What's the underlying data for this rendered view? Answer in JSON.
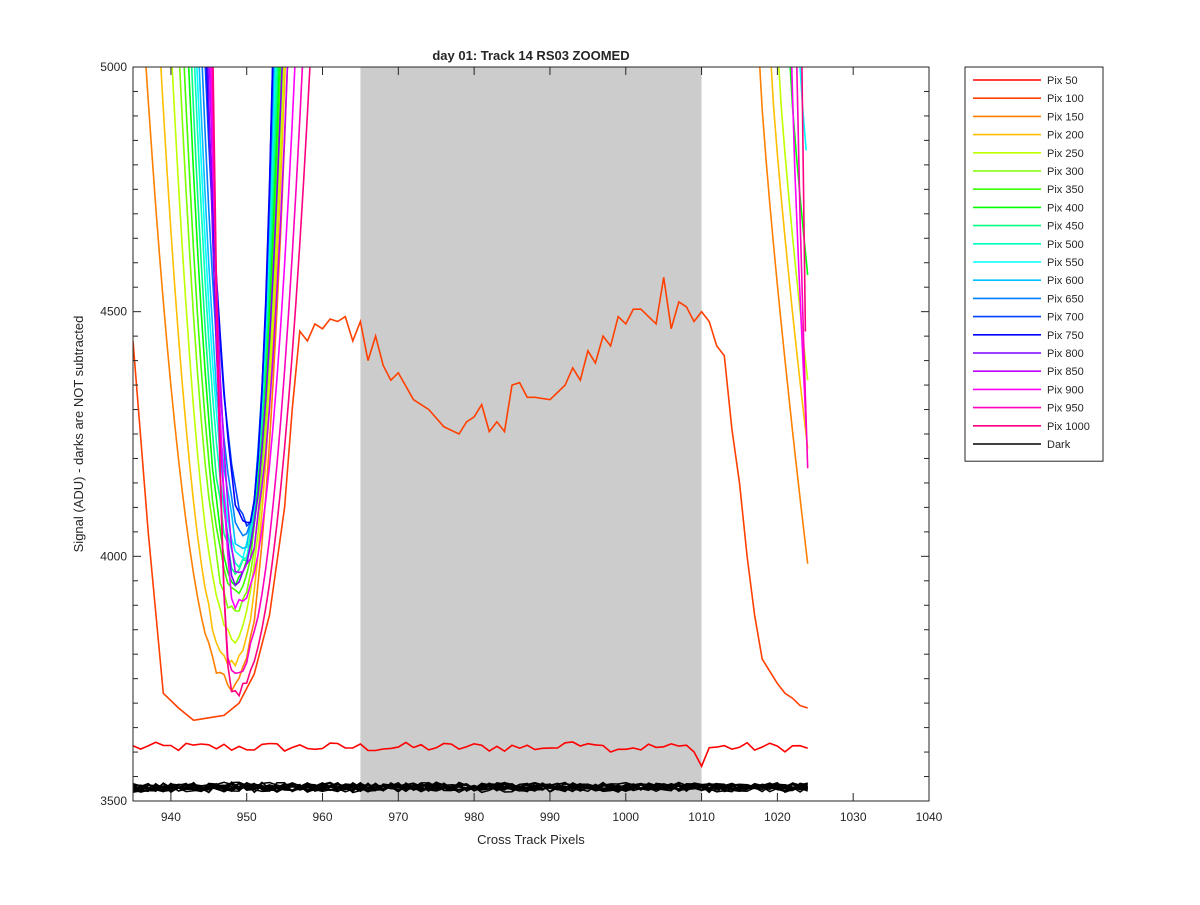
{
  "chart_data": {
    "type": "line",
    "title": "day 01: Track 14  RS03 ZOOMED",
    "xlabel": "Cross Track Pixels",
    "ylabel": "Signal (ADU) - darks are NOT subtracted",
    "xlim": [
      935,
      1040
    ],
    "ylim": [
      3500,
      5000
    ],
    "xticks": [
      940,
      950,
      960,
      970,
      980,
      990,
      1000,
      1010,
      1020,
      1030,
      1040
    ],
    "yticks": [
      3500,
      4000,
      4500,
      5000
    ],
    "grid": false,
    "legend_position": "outside-top-right",
    "shaded_region": {
      "x": [
        965,
        1010
      ],
      "color": "#cccccc"
    },
    "series": [
      {
        "name": "Pix 50",
        "color": "#ff0000",
        "kind": "flat",
        "base": 3610,
        "noise": 10
      },
      {
        "name": "Pix 100",
        "color": "#ff4000",
        "kind": "pix100",
        "x": [
          935,
          937,
          939,
          941,
          943,
          945,
          947,
          949,
          951,
          953,
          955,
          956,
          957,
          958,
          959,
          960,
          961,
          962,
          963,
          964,
          965,
          966,
          967,
          968,
          969,
          970,
          972,
          974,
          976,
          978,
          979,
          980,
          981,
          982,
          983,
          984,
          985,
          986,
          987,
          988,
          990,
          992,
          993,
          994,
          995,
          996,
          997,
          998,
          999,
          1000,
          1001,
          1002,
          1003,
          1004,
          1005,
          1006,
          1007,
          1008,
          1009,
          1010,
          1011,
          1012,
          1013,
          1014,
          1015,
          1016,
          1017,
          1018,
          1019,
          1020,
          1021,
          1022,
          1023,
          1024
        ],
        "y": [
          4440,
          4050,
          3720,
          3690,
          3665,
          3670,
          3675,
          3700,
          3760,
          3880,
          4100,
          4300,
          4460,
          4440,
          4475,
          4465,
          4485,
          4480,
          4490,
          4440,
          4480,
          4400,
          4450,
          4390,
          4360,
          4375,
          4320,
          4300,
          4265,
          4250,
          4275,
          4285,
          4310,
          4255,
          4275,
          4255,
          4350,
          4355,
          4325,
          4325,
          4320,
          4350,
          4385,
          4360,
          4420,
          4395,
          4450,
          4430,
          4490,
          4475,
          4505,
          4505,
          4490,
          4475,
          4570,
          4465,
          4520,
          4510,
          4480,
          4500,
          4480,
          4430,
          4410,
          4260,
          4150,
          4000,
          3880,
          3790,
          3765,
          3740,
          3720,
          3710,
          3695,
          3690
        ]
      },
      {
        "name": "Pix 150",
        "color": "#ff8000",
        "kind": "u",
        "min": 3735,
        "center": 948,
        "left_x": 936.5,
        "right_x": 955.5,
        "far_x": 1017.5,
        "end_value": 3985
      },
      {
        "name": "Pix 200",
        "color": "#ffbf00",
        "kind": "u",
        "min": 3780,
        "center": 948,
        "left_x": 938.5,
        "right_x": 955.2,
        "far_x": 1019,
        "end_value": 4220
      },
      {
        "name": "Pix 250",
        "color": "#bfff00",
        "kind": "u",
        "min": 3835,
        "center": 948.2,
        "left_x": 940,
        "right_x": 955,
        "far_x": 1020,
        "end_value": 4360
      },
      {
        "name": "Pix 300",
        "color": "#80ff00",
        "kind": "u",
        "min": 3890,
        "center": 948.4,
        "left_x": 941,
        "right_x": 954.8
      },
      {
        "name": "Pix 350",
        "color": "#40ff00",
        "kind": "u",
        "min": 3925,
        "center": 948.5,
        "left_x": 941.6,
        "right_x": 954.6
      },
      {
        "name": "Pix 400",
        "color": "#00ff00",
        "kind": "u",
        "min": 3950,
        "center": 948.6,
        "left_x": 942.2,
        "right_x": 954.4,
        "far_x": 1021.5,
        "end_value": 4575
      },
      {
        "name": "Pix 450",
        "color": "#00ff80",
        "kind": "u",
        "min": 3970,
        "center": 948.8,
        "left_x": 942.6,
        "right_x": 954.2
      },
      {
        "name": "Pix 500",
        "color": "#00ffbf",
        "kind": "u",
        "min": 3985,
        "center": 949,
        "left_x": 943,
        "right_x": 954
      },
      {
        "name": "Pix 550",
        "color": "#00ffff",
        "kind": "u",
        "min": 4000,
        "center": 949.2,
        "left_x": 943.3,
        "right_x": 953.8,
        "far_x": 1022.8,
        "end_value": 4795
      },
      {
        "name": "Pix 600",
        "color": "#00bfff",
        "kind": "u",
        "min": 4020,
        "center": 949.4,
        "left_x": 943.6,
        "right_x": 953.7
      },
      {
        "name": "Pix 650",
        "color": "#0080ff",
        "kind": "u",
        "min": 4040,
        "center": 949.6,
        "left_x": 944,
        "right_x": 953.6
      },
      {
        "name": "Pix 700",
        "color": "#0040ff",
        "kind": "u",
        "min": 4070,
        "center": 950,
        "left_x": 944.4,
        "right_x": 953.5
      },
      {
        "name": "Pix 750",
        "color": "#0000ff",
        "kind": "u",
        "min": 4060,
        "center": 949.8,
        "left_x": 944.6,
        "right_x": 953.5
      },
      {
        "name": "Pix 800",
        "color": "#8000ff",
        "kind": "u",
        "min": 3950,
        "center": 948.5,
        "left_x": 944.8,
        "right_x": 954.8
      },
      {
        "name": "Pix 850",
        "color": "#bf00ff",
        "kind": "u",
        "min": 3965,
        "center": 949,
        "left_x": 945,
        "right_x": 955.5
      },
      {
        "name": "Pix 900",
        "color": "#ff00ff",
        "kind": "u",
        "min": 3895,
        "center": 948.5,
        "left_x": 945.2,
        "right_x": 956.5,
        "far_x": 1021.8,
        "end_value": 4200
      },
      {
        "name": "Pix 950",
        "color": "#ff00bf",
        "kind": "u",
        "min": 3760,
        "center": 948,
        "left_x": 945.4,
        "right_x": 957.5,
        "far_x": 1022.5,
        "end_value": 4180
      },
      {
        "name": "Pix 1000",
        "color": "#ff0080",
        "kind": "u",
        "min": 3720,
        "center": 948,
        "left_x": 945.5,
        "right_x": 958.5,
        "far_x": 1023.2,
        "end_value": 4190
      },
      {
        "name": "Dark",
        "color": "#000000",
        "kind": "dark",
        "base": 3528,
        "noise": 8,
        "count": 14
      }
    ]
  }
}
